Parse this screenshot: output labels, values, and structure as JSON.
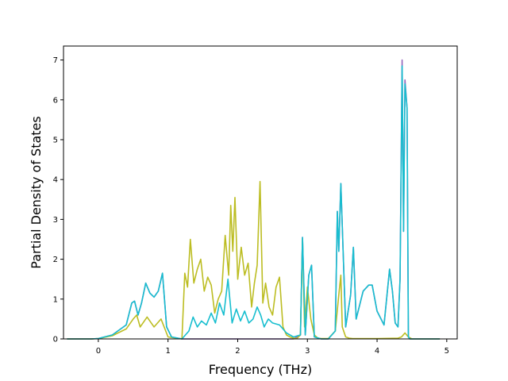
{
  "chart_data": {
    "type": "line",
    "title": "",
    "xlabel": "Frequency (THz)",
    "ylabel": "Partial Density of States",
    "xlim": [
      -0.5,
      5.15
    ],
    "ylim": [
      0,
      7.35
    ],
    "xticks": [
      0,
      1,
      2,
      3,
      4,
      5
    ],
    "yticks": [
      0,
      1,
      2,
      3,
      4,
      5,
      6,
      7
    ],
    "grid": false,
    "series": [
      {
        "color": "#9467bd",
        "x": [
          -0.45,
          -0.1,
          0.0,
          0.2,
          0.4,
          0.48,
          0.52,
          0.57,
          0.62,
          0.68,
          0.74,
          0.8,
          0.86,
          0.92,
          0.98,
          1.05,
          1.2,
          1.5,
          2.0,
          2.5,
          2.8,
          2.9,
          2.93,
          2.97,
          3.02,
          3.06,
          3.1,
          3.2,
          3.3,
          3.4,
          3.43,
          3.45,
          3.48,
          3.55,
          3.62,
          3.66,
          3.7,
          3.8,
          3.88,
          3.93,
          4.0,
          4.1,
          4.18,
          4.22,
          4.26,
          4.3,
          4.33,
          4.36,
          4.38,
          4.4,
          4.43,
          4.45,
          4.47,
          4.9
        ],
        "y": [
          0,
          0,
          0.01,
          0.1,
          0.35,
          0.9,
          0.95,
          0.6,
          0.9,
          1.4,
          1.15,
          1.05,
          1.2,
          1.65,
          0.3,
          0.05,
          0,
          0,
          0,
          0,
          0,
          0.1,
          2.55,
          0.1,
          1.6,
          1.85,
          0.05,
          0,
          0,
          0.2,
          3.2,
          2.2,
          3.9,
          0.3,
          1.1,
          2.3,
          0.5,
          1.2,
          1.35,
          1.35,
          0.7,
          0.35,
          1.75,
          1.2,
          0.4,
          0.3,
          1.5,
          7.0,
          2.7,
          6.5,
          5.8,
          0.05,
          0,
          0
        ]
      },
      {
        "color": "#bcbd22",
        "x": [
          -0.45,
          -0.1,
          0.0,
          0.2,
          0.4,
          0.5,
          0.55,
          0.6,
          0.7,
          0.8,
          0.9,
          1.0,
          1.2,
          1.24,
          1.28,
          1.32,
          1.37,
          1.42,
          1.47,
          1.52,
          1.57,
          1.62,
          1.67,
          1.72,
          1.77,
          1.82,
          1.87,
          1.9,
          1.93,
          1.96,
          2.0,
          2.05,
          2.1,
          2.15,
          2.2,
          2.24,
          2.28,
          2.32,
          2.36,
          2.4,
          2.45,
          2.5,
          2.55,
          2.6,
          2.65,
          2.7,
          2.75,
          2.8,
          2.85,
          2.9,
          2.93,
          2.96,
          3.0,
          3.05,
          3.1,
          3.15,
          3.2,
          3.3,
          3.4,
          3.45,
          3.48,
          3.5,
          3.55,
          3.6,
          3.65,
          3.7,
          3.8,
          4.0,
          4.3,
          4.35,
          4.4,
          4.45,
          4.5,
          4.9
        ],
        "y": [
          0,
          0,
          0.01,
          0.08,
          0.25,
          0.5,
          0.6,
          0.3,
          0.55,
          0.3,
          0.5,
          0.05,
          0,
          1.65,
          1.3,
          2.5,
          1.4,
          1.75,
          2.0,
          1.2,
          1.55,
          1.35,
          0.65,
          1.0,
          1.2,
          2.6,
          1.6,
          3.35,
          2.2,
          3.55,
          1.5,
          2.3,
          1.6,
          1.9,
          0.8,
          1.4,
          1.85,
          3.95,
          0.9,
          1.4,
          0.8,
          0.6,
          1.3,
          1.55,
          0.3,
          0.1,
          0.05,
          0.02,
          0.01,
          0.1,
          2.5,
          0.3,
          1.3,
          0.5,
          0.1,
          0.02,
          0.01,
          0.01,
          0.2,
          1.1,
          1.6,
          0.3,
          0.05,
          0.02,
          0.01,
          0.01,
          0.01,
          0.01,
          0.02,
          0.05,
          0.15,
          0.05,
          0,
          0
        ]
      },
      {
        "color": "#17becf",
        "x": [
          -0.45,
          -0.1,
          0.0,
          0.2,
          0.4,
          0.48,
          0.52,
          0.57,
          0.62,
          0.68,
          0.74,
          0.8,
          0.86,
          0.92,
          0.98,
          1.05,
          1.2,
          1.3,
          1.36,
          1.42,
          1.48,
          1.55,
          1.62,
          1.68,
          1.74,
          1.8,
          1.86,
          1.92,
          1.98,
          2.04,
          2.1,
          2.16,
          2.22,
          2.28,
          2.33,
          2.38,
          2.44,
          2.5,
          2.6,
          2.7,
          2.8,
          2.9,
          2.93,
          2.97,
          3.02,
          3.06,
          3.1,
          3.2,
          3.3,
          3.4,
          3.43,
          3.45,
          3.48,
          3.55,
          3.62,
          3.66,
          3.7,
          3.8,
          3.88,
          3.93,
          4.0,
          4.1,
          4.18,
          4.22,
          4.26,
          4.3,
          4.33,
          4.36,
          4.38,
          4.4,
          4.43,
          4.45,
          4.47,
          4.9
        ],
        "y": [
          0,
          0,
          0.01,
          0.1,
          0.35,
          0.9,
          0.95,
          0.6,
          0.9,
          1.4,
          1.15,
          1.05,
          1.2,
          1.65,
          0.3,
          0.05,
          0,
          0.2,
          0.55,
          0.3,
          0.45,
          0.35,
          0.65,
          0.4,
          0.9,
          0.6,
          1.5,
          0.4,
          0.75,
          0.45,
          0.7,
          0.4,
          0.5,
          0.8,
          0.6,
          0.3,
          0.5,
          0.4,
          0.35,
          0.15,
          0.05,
          0.1,
          2.55,
          0.1,
          1.6,
          1.85,
          0.05,
          0,
          0,
          0.2,
          3.2,
          2.2,
          3.9,
          0.3,
          1.1,
          2.3,
          0.5,
          1.2,
          1.35,
          1.35,
          0.7,
          0.35,
          1.75,
          1.2,
          0.4,
          0.3,
          1.5,
          6.85,
          2.7,
          6.4,
          5.8,
          0.05,
          0,
          0
        ]
      }
    ]
  }
}
